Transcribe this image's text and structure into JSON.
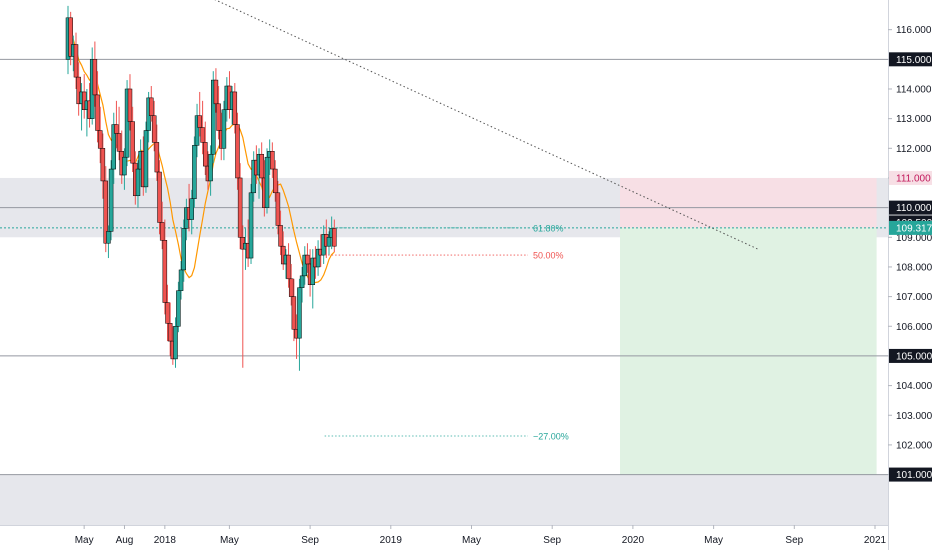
{
  "chart_data": {
    "type": "candlestick",
    "title": "",
    "xlabel": "",
    "ylabel": "",
    "ylim": [
      99.3,
      117.0
    ],
    "grid": false,
    "y_ticks": [
      "116.000",
      "115.000",
      "114.000",
      "113.000",
      "112.000",
      "111.000",
      "110.000",
      "109.000",
      "108.000",
      "107.000",
      "106.000",
      "105.000",
      "104.000",
      "103.000",
      "102.000",
      "101.000"
    ],
    "x_ticks": [
      {
        "label": "May",
        "t": 0.0667
      },
      {
        "label": "Aug",
        "t": 0.2333
      },
      {
        "label": "2018",
        "t": 0.4
      },
      {
        "label": "May",
        "t": 0.6667
      },
      {
        "label": "Sep",
        "t": 1.0
      },
      {
        "label": "2019",
        "t": 1.3333
      },
      {
        "label": "May",
        "t": 1.6667
      },
      {
        "label": "Sep",
        "t": 2.0
      },
      {
        "label": "2020",
        "t": 2.3333
      },
      {
        "label": "May",
        "t": 2.6667
      },
      {
        "label": "Sep",
        "t": 3.0
      },
      {
        "label": "2021",
        "t": 3.3333
      }
    ],
    "price_labels": [
      {
        "text": "115.000",
        "y": 115.0,
        "style": "dark"
      },
      {
        "text": "111.000",
        "y": 111.0,
        "style": "red"
      },
      {
        "text": "110.000",
        "y": 110.0,
        "style": "dark"
      },
      {
        "text": "109.500",
        "y": 109.5,
        "style": "dark"
      },
      {
        "text": "109.317",
        "y": 109.317,
        "style": "teal"
      },
      {
        "text": "105.000",
        "y": 105.0,
        "style": "dark"
      },
      {
        "text": "101.000",
        "y": 101.0,
        "style": "dark"
      }
    ],
    "horizontal_levels": [
      115.0,
      110.0,
      105.0,
      101.0
    ],
    "zones": [
      {
        "from": 109.0,
        "to": 111.0,
        "color": "#d1d4dc"
      },
      {
        "from": 99.3,
        "to": 101.0,
        "color": "#d1d4dc"
      }
    ],
    "fib_annotations": [
      {
        "text": "61.80%",
        "y": 109.317,
        "color": "#26a69a"
      },
      {
        "text": "50.00%",
        "y": 108.4,
        "color": "#ef5350"
      },
      {
        "text": "−27.00%",
        "y": 102.3,
        "color": "#26a69a"
      }
    ],
    "position": {
      "entry": 109.317,
      "stop": 111.0,
      "target": 101.0,
      "stop_color": "#f7dfe5",
      "target_color": "#e0f2e3"
    },
    "trendline": {
      "from": {
        "t": 0.53,
        "y": 117.3
      },
      "to": {
        "t": 2.85,
        "y": 108.6
      }
    },
    "moving_average_color": "#ff9800",
    "up_color": "#26a69a",
    "down_color": "#ef5350",
    "candles": [
      [
        0.0,
        115.0,
        116.8,
        114.5,
        116.4
      ],
      [
        0.011,
        116.4,
        116.6,
        114.8,
        115.1
      ],
      [
        0.022,
        115.1,
        115.8,
        114.6,
        115.5
      ],
      [
        0.033,
        115.5,
        115.9,
        114.0,
        114.4
      ],
      [
        0.044,
        114.4,
        114.9,
        113.1,
        113.5
      ],
      [
        0.056,
        113.5,
        114.2,
        112.6,
        113.9
      ],
      [
        0.067,
        113.9,
        114.5,
        113.0,
        113.3
      ],
      [
        0.078,
        113.3,
        114.0,
        112.4,
        113.6
      ],
      [
        0.089,
        113.6,
        114.2,
        112.7,
        113.0
      ],
      [
        0.1,
        113.0,
        115.4,
        112.8,
        115.0
      ],
      [
        0.111,
        115.0,
        115.6,
        113.4,
        113.8
      ],
      [
        0.122,
        113.8,
        114.6,
        112.2,
        112.6
      ],
      [
        0.133,
        112.6,
        113.4,
        111.5,
        112.0
      ],
      [
        0.144,
        112.0,
        112.5,
        110.3,
        110.9
      ],
      [
        0.156,
        110.9,
        111.4,
        108.5,
        108.8
      ],
      [
        0.167,
        108.8,
        109.4,
        108.3,
        109.2
      ],
      [
        0.178,
        109.2,
        111.6,
        108.9,
        111.3
      ],
      [
        0.189,
        111.3,
        113.2,
        110.8,
        112.8
      ],
      [
        0.2,
        112.8,
        113.6,
        112.0,
        112.5
      ],
      [
        0.211,
        112.5,
        113.4,
        111.6,
        111.9
      ],
      [
        0.222,
        111.9,
        112.6,
        110.8,
        111.1
      ],
      [
        0.233,
        111.1,
        112.0,
        110.6,
        111.7
      ],
      [
        0.244,
        111.7,
        114.3,
        111.4,
        114.0
      ],
      [
        0.256,
        114.0,
        114.5,
        112.6,
        112.9
      ],
      [
        0.267,
        112.9,
        113.4,
        111.2,
        111.5
      ],
      [
        0.278,
        111.5,
        111.9,
        110.1,
        110.4
      ],
      [
        0.289,
        110.4,
        111.6,
        110.0,
        111.3
      ],
      [
        0.3,
        111.3,
        112.3,
        110.7,
        111.9
      ],
      [
        0.311,
        111.9,
        112.4,
        110.4,
        110.7
      ],
      [
        0.322,
        110.7,
        112.9,
        110.5,
        112.6
      ],
      [
        0.333,
        112.6,
        113.9,
        112.2,
        113.7
      ],
      [
        0.344,
        113.7,
        114.1,
        112.9,
        113.1
      ],
      [
        0.356,
        113.1,
        113.6,
        111.9,
        112.2
      ],
      [
        0.367,
        112.2,
        112.8,
        110.9,
        111.2
      ],
      [
        0.378,
        111.2,
        111.6,
        109.1,
        109.5
      ],
      [
        0.389,
        109.5,
        110.2,
        108.6,
        108.9
      ],
      [
        0.4,
        108.9,
        109.6,
        106.4,
        106.8
      ],
      [
        0.411,
        106.8,
        107.4,
        105.5,
        106.1
      ],
      [
        0.422,
        106.1,
        106.8,
        105.0,
        105.5
      ],
      [
        0.433,
        105.5,
        106.0,
        104.7,
        104.9
      ],
      [
        0.444,
        104.9,
        106.3,
        104.6,
        106.0
      ],
      [
        0.456,
        106.0,
        107.5,
        105.8,
        107.2
      ],
      [
        0.467,
        107.2,
        108.2,
        106.9,
        107.9
      ],
      [
        0.478,
        107.9,
        109.6,
        107.5,
        109.3
      ],
      [
        0.489,
        109.3,
        110.3,
        108.9,
        110.0
      ],
      [
        0.5,
        110.0,
        110.8,
        109.2,
        109.6
      ],
      [
        0.511,
        109.6,
        110.6,
        109.1,
        110.3
      ],
      [
        0.522,
        110.3,
        112.4,
        110.0,
        112.1
      ],
      [
        0.533,
        112.1,
        113.5,
        111.7,
        113.1
      ],
      [
        0.544,
        113.1,
        113.9,
        112.4,
        112.7
      ],
      [
        0.556,
        112.7,
        113.6,
        111.8,
        112.2
      ],
      [
        0.567,
        112.2,
        112.9,
        111.1,
        111.4
      ],
      [
        0.578,
        111.4,
        111.9,
        110.6,
        110.9
      ],
      [
        0.589,
        110.9,
        112.1,
        110.4,
        111.8
      ],
      [
        0.6,
        111.8,
        114.6,
        111.5,
        114.3
      ],
      [
        0.611,
        114.3,
        114.7,
        113.2,
        113.5
      ],
      [
        0.622,
        113.5,
        114.1,
        112.3,
        112.6
      ],
      [
        0.633,
        112.6,
        113.2,
        111.6,
        112.0
      ],
      [
        0.644,
        112.0,
        113.6,
        111.6,
        113.3
      ],
      [
        0.656,
        113.3,
        114.4,
        112.9,
        114.1
      ],
      [
        0.667,
        114.1,
        114.6,
        113.0,
        113.3
      ],
      [
        0.678,
        113.3,
        114.1,
        112.8,
        113.9
      ],
      [
        0.689,
        113.9,
        114.2,
        112.5,
        112.8
      ],
      [
        0.7,
        112.8,
        113.2,
        110.6,
        111.0
      ],
      [
        0.711,
        111.0,
        111.5,
        108.6,
        109.0
      ],
      [
        0.722,
        109.0,
        109.4,
        104.6,
        108.6
      ],
      [
        0.733,
        108.6,
        109.3,
        107.9,
        108.8
      ],
      [
        0.744,
        108.8,
        109.6,
        108.0,
        108.3
      ],
      [
        0.756,
        108.3,
        110.8,
        108.1,
        110.5
      ],
      [
        0.767,
        110.5,
        111.9,
        110.2,
        111.6
      ],
      [
        0.778,
        111.6,
        112.1,
        110.8,
        111.1
      ],
      [
        0.789,
        111.1,
        112.0,
        110.3,
        111.8
      ],
      [
        0.8,
        111.8,
        112.2,
        110.7,
        111.0
      ],
      [
        0.811,
        111.0,
        111.6,
        109.7,
        110.0
      ],
      [
        0.822,
        110.0,
        112.0,
        109.8,
        111.7
      ],
      [
        0.833,
        111.7,
        112.3,
        111.1,
        111.9
      ],
      [
        0.844,
        111.9,
        112.2,
        111.0,
        111.3
      ],
      [
        0.856,
        111.3,
        111.6,
        110.2,
        110.5
      ],
      [
        0.867,
        110.5,
        110.9,
        109.1,
        109.4
      ],
      [
        0.878,
        109.4,
        109.9,
        108.4,
        108.7
      ],
      [
        0.889,
        108.7,
        109.2,
        107.9,
        108.1
      ],
      [
        0.9,
        108.1,
        108.6,
        107.6,
        108.4
      ],
      [
        0.911,
        108.4,
        108.8,
        107.3,
        107.6
      ],
      [
        0.922,
        107.6,
        108.1,
        106.7,
        107.0
      ],
      [
        0.933,
        107.0,
        107.6,
        105.5,
        105.9
      ],
      [
        0.944,
        105.9,
        106.4,
        104.9,
        105.6
      ],
      [
        0.956,
        105.6,
        107.6,
        104.5,
        107.3
      ],
      [
        0.967,
        107.3,
        108.0,
        106.8,
        107.7
      ],
      [
        0.978,
        107.7,
        108.7,
        107.4,
        108.4
      ],
      [
        0.989,
        108.4,
        108.8,
        107.8,
        108.1
      ],
      [
        1.0,
        108.1,
        108.6,
        107.0,
        107.4
      ],
      [
        1.011,
        107.4,
        108.6,
        106.6,
        108.3
      ],
      [
        1.022,
        108.3,
        108.7,
        107.6,
        108.0
      ],
      [
        1.033,
        108.0,
        108.9,
        107.7,
        108.6
      ],
      [
        1.044,
        108.6,
        109.1,
        108.0,
        108.4
      ],
      [
        1.056,
        108.4,
        109.4,
        108.1,
        109.1
      ],
      [
        1.067,
        109.1,
        109.6,
        108.3,
        108.7
      ],
      [
        1.078,
        108.7,
        109.2,
        108.4,
        109.0
      ],
      [
        1.089,
        109.0,
        109.7,
        108.6,
        109.3
      ],
      [
        1.1,
        109.3,
        109.6,
        108.5,
        108.7
      ]
    ]
  }
}
